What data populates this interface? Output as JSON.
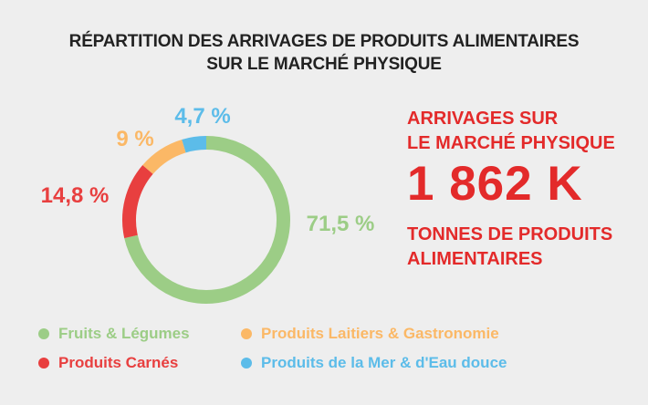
{
  "title": {
    "line1": "RÉPARTITION DES ARRIVAGES DE PRODUITS ALIMENTAIRES",
    "line2": "SUR LE MARCHÉ PHYSIQUE"
  },
  "stat": {
    "top_line1": "ARRIVAGES SUR",
    "top_line2": "LE MARCHÉ PHYSIQUE",
    "value": "1 862 K",
    "bottom_line1": "TONNES DE PRODUITS",
    "bottom_line2": "ALIMENTAIRES",
    "color": "#e32a2a"
  },
  "chart_data": {
    "type": "pie",
    "donut": true,
    "series": [
      {
        "name": "Fruits & Légumes",
        "value": 71.5,
        "label": "71,5 %",
        "color": "#9ccd86"
      },
      {
        "name": "Produits Carnés",
        "value": 14.8,
        "label": "14,8 %",
        "color": "#e83f3f"
      },
      {
        "name": "Produits Laitiers & Gastronomie",
        "value": 9,
        "label": "9 %",
        "color": "#fbb866"
      },
      {
        "name": "Produits de la Mer & d'Eau douce",
        "value": 4.7,
        "label": "4,7 %",
        "color": "#5cbce9"
      }
    ],
    "legend_placement": "bottom"
  },
  "legend": {
    "items": [
      {
        "label": "Fruits & Légumes",
        "color": "#9ccd86"
      },
      {
        "label": "Produits Laitiers & Gastronomie",
        "color": "#fbb866"
      },
      {
        "label": "Produits Carnés",
        "color": "#e83f3f"
      },
      {
        "label": "Produits de la Mer & d'Eau douce",
        "color": "#5cbce9"
      }
    ]
  }
}
